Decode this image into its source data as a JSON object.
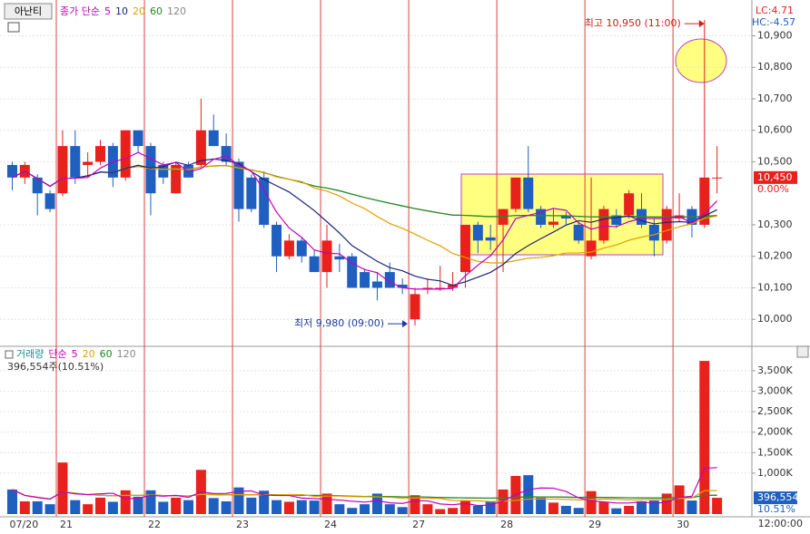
{
  "stock_button": "아난티",
  "price_legend": {
    "label": "종가 단순",
    "color": "#c000c0",
    "periods": [
      {
        "value": 5,
        "color": "#c000c0"
      },
      {
        "value": 10,
        "color": "#1a237e"
      },
      {
        "value": 20,
        "color": "#e0a000"
      },
      {
        "value": 60,
        "color": "#1e8a1e"
      },
      {
        "value": 120,
        "color": "#888888"
      }
    ]
  },
  "volume_legend": {
    "label": "거래량",
    "color": "#1e8a8a",
    "ma_label": "단순",
    "ma_color": "#c000c0",
    "periods": [
      {
        "value": 5,
        "color": "#c000c0"
      },
      {
        "value": 20,
        "color": "#e0a000"
      },
      {
        "value": 60,
        "color": "#1e8a1e"
      },
      {
        "value": 120,
        "color": "#888888"
      }
    ]
  },
  "volume_info": "396,554주(10.51%)",
  "lc": "LC:4.71",
  "hc": "HC:-4.57",
  "up_color": "#e8211c",
  "down_color": "#1f5fc0",
  "price_ylim": [
    9920,
    11005
  ],
  "price_ticks": [
    {
      "value": 10900,
      "label": "10,900"
    },
    {
      "value": 10800,
      "label": "10,800"
    },
    {
      "value": 10700,
      "label": "10,700"
    },
    {
      "value": 10600,
      "label": "10,600"
    },
    {
      "value": 10500,
      "label": "10,500"
    },
    {
      "value": 10300,
      "label": "10,300"
    },
    {
      "value": 10200,
      "label": "10,200"
    },
    {
      "value": 10100,
      "label": "10,100"
    },
    {
      "value": 10000,
      "label": "10,000"
    }
  ],
  "last_price": {
    "value": 10450,
    "label": "10,450"
  },
  "last_change": "0.00%",
  "volume_ylim": [
    0,
    4030
  ],
  "volume_ticks": [
    {
      "value": 3500,
      "label": "3,500K"
    },
    {
      "value": 3000,
      "label": "3,000K"
    },
    {
      "value": 2500,
      "label": "2,500K"
    },
    {
      "value": 2000,
      "label": "2,000K"
    },
    {
      "value": 1500,
      "label": "1,500K"
    },
    {
      "value": 1000,
      "label": "1,000K"
    }
  ],
  "last_volume": {
    "value": 396.554,
    "label": "396,554"
  },
  "last_volume_ratio": "10.51%",
  "high_note": "최고 10,950 (11:00)",
  "low_note": "최저 9,980 (09:00)",
  "time_label": "12:00:00",
  "days": [
    {
      "label": "07/20",
      "candles": [
        [
          10490,
          10500,
          10410,
          10450
        ],
        [
          10450,
          10500,
          10430,
          10490
        ],
        [
          10450,
          10460,
          10330,
          10400
        ],
        [
          10400,
          10410,
          10340,
          10350
        ]
      ],
      "volume": [
        600,
        310,
        310,
        240
      ]
    },
    {
      "label": "21",
      "candles": [
        [
          10400,
          10600,
          10390,
          10550
        ],
        [
          10550,
          10600,
          10430,
          10450
        ],
        [
          10490,
          10530,
          10450,
          10500
        ],
        [
          10500,
          10570,
          10490,
          10550
        ],
        [
          10550,
          10560,
          10420,
          10450
        ],
        [
          10450,
          10600,
          10440,
          10600
        ],
        [
          10600,
          10600,
          10530,
          10550
        ]
      ],
      "volume": [
        1260,
        340,
        240,
        400,
        300,
        580,
        420
      ]
    },
    {
      "label": "22",
      "candles": [
        [
          10550,
          10560,
          10330,
          10400
        ],
        [
          10490,
          10500,
          10430,
          10450
        ],
        [
          10400,
          10500,
          10400,
          10490
        ],
        [
          10490,
          10500,
          10450,
          10450
        ],
        [
          10490,
          10700,
          10480,
          10600
        ],
        [
          10600,
          10650,
          10550,
          10550
        ],
        [
          10550,
          10590,
          10490,
          10500
        ]
      ],
      "volume": [
        580,
        300,
        400,
        340,
        1080,
        390,
        310
      ]
    },
    {
      "label": "23",
      "candles": [
        [
          10500,
          10510,
          10310,
          10350
        ],
        [
          10450,
          10460,
          10340,
          10350
        ],
        [
          10450,
          10470,
          10290,
          10300
        ],
        [
          10300,
          10310,
          10150,
          10200
        ],
        [
          10200,
          10270,
          10190,
          10250
        ],
        [
          10250,
          10260,
          10180,
          10200
        ],
        [
          10200,
          10220,
          10150,
          10150
        ]
      ],
      "volume": [
        650,
        400,
        570,
        340,
        300,
        340,
        330
      ]
    },
    {
      "label": "24",
      "candles": [
        [
          10150,
          10300,
          10100,
          10250
        ],
        [
          10200,
          10240,
          10150,
          10190
        ],
        [
          10200,
          10210,
          10100,
          10100
        ],
        [
          10150,
          10160,
          10100,
          10100
        ],
        [
          10120,
          10150,
          10060,
          10100
        ],
        [
          10150,
          10180,
          10100,
          10100
        ],
        [
          10110,
          10130,
          10080,
          10100
        ]
      ],
      "volume": [
        500,
        240,
        150,
        240,
        500,
        240,
        170
      ]
    },
    {
      "label": "27",
      "candles": [
        [
          10000,
          10100,
          9980,
          10080
        ],
        [
          10100,
          10130,
          10080,
          10100
        ],
        [
          10100,
          10170,
          10090,
          10100
        ],
        [
          10100,
          10150,
          10090,
          10110
        ],
        [
          10150,
          10300,
          10100,
          10300
        ],
        [
          10300,
          10310,
          10210,
          10250
        ],
        [
          10260,
          10300,
          10220,
          10250
        ]
      ],
      "volume": [
        460,
        240,
        120,
        150,
        330,
        200,
        300
      ]
    },
    {
      "label": "28",
      "candles": [
        [
          10300,
          10350,
          10150,
          10350
        ],
        [
          10350,
          10450,
          10340,
          10450
        ],
        [
          10450,
          10550,
          10340,
          10350
        ],
        [
          10350,
          10360,
          10290,
          10300
        ],
        [
          10300,
          10350,
          10290,
          10310
        ],
        [
          10330,
          10340,
          10300,
          10320
        ],
        [
          10300,
          10310,
          10240,
          10250
        ]
      ],
      "volume": [
        600,
        930,
        950,
        400,
        280,
        200,
        150
      ]
    },
    {
      "label": "29",
      "candles": [
        [
          10200,
          10450,
          10190,
          10250
        ],
        [
          10250,
          10360,
          10240,
          10350
        ],
        [
          10330,
          10350,
          10290,
          10300
        ],
        [
          10330,
          10410,
          10320,
          10400
        ],
        [
          10350,
          10400,
          10290,
          10300
        ],
        [
          10300,
          10320,
          10200,
          10250
        ],
        [
          10250,
          10360,
          10240,
          10350
        ]
      ],
      "volume": [
        560,
        300,
        140,
        200,
        310,
        330,
        500
      ]
    },
    {
      "label": "30",
      "candles": [
        [
          10320,
          10400,
          10310,
          10330
        ],
        [
          10350,
          10360,
          10260,
          10300
        ],
        [
          10300,
          10950,
          10290,
          10450
        ],
        [
          10450,
          10550,
          10400,
          10450
        ]
      ],
      "volume": [
        700,
        330,
        3740,
        397
      ]
    }
  ]
}
